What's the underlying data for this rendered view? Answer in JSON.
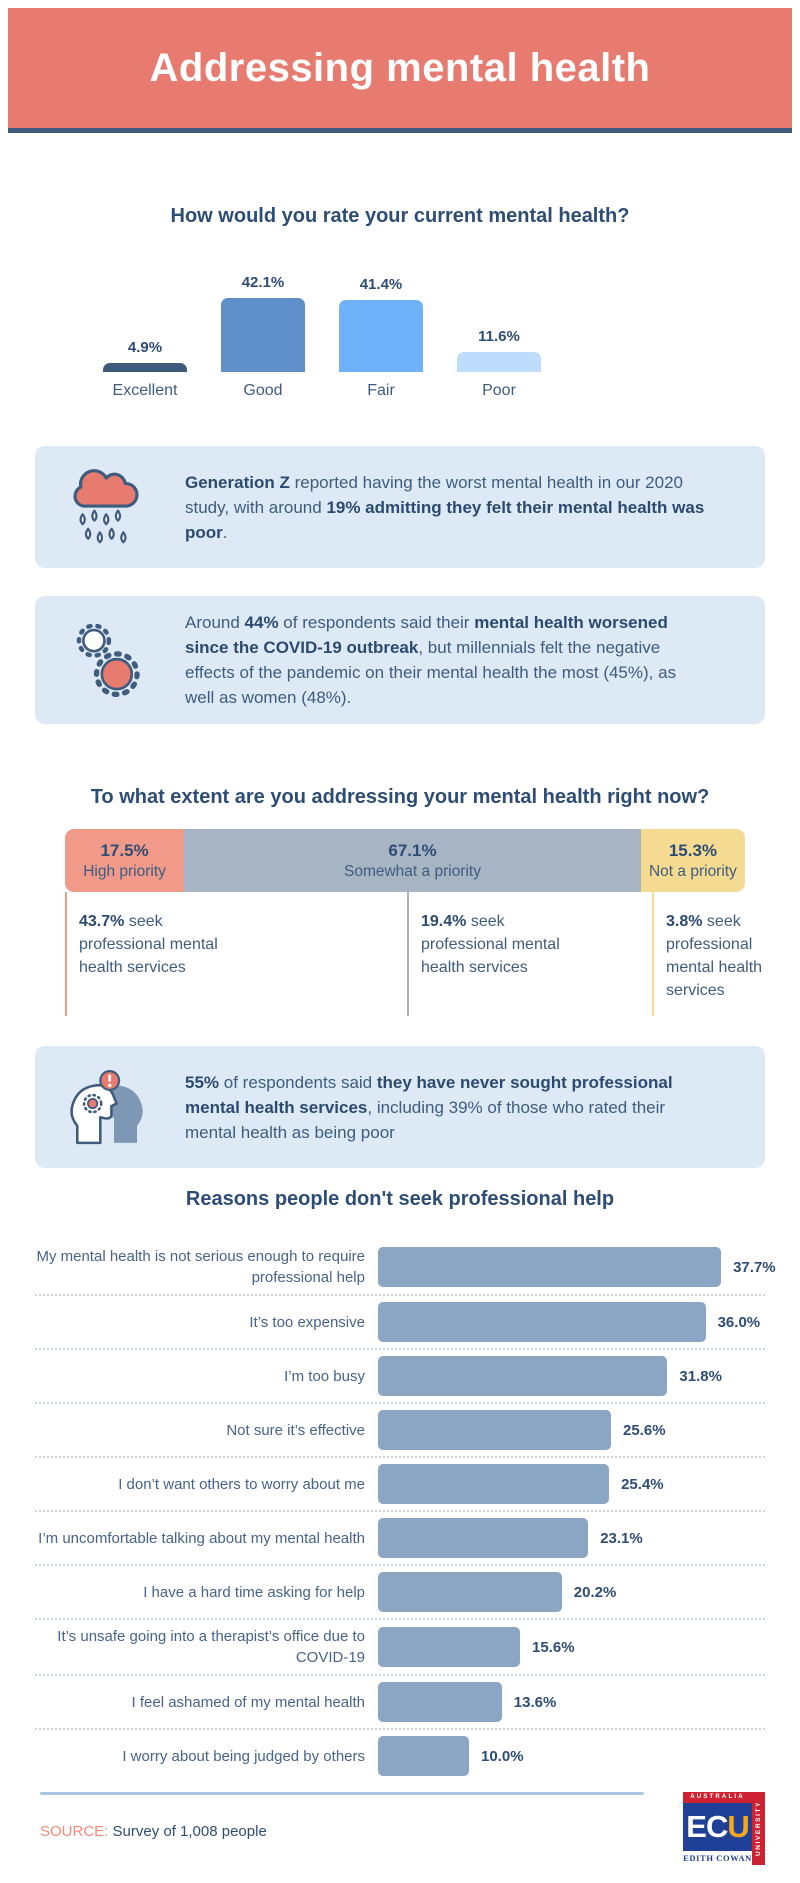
{
  "header": {
    "title": "Addressing mental health"
  },
  "chart_data": [
    {
      "id": "rating",
      "type": "bar",
      "title": "How would you rate your current mental health?",
      "categories": [
        "Excellent",
        "Good",
        "Fair",
        "Poor"
      ],
      "values": [
        4.9,
        42.1,
        41.4,
        11.6
      ],
      "value_labels": [
        "4.9%",
        "42.1%",
        "41.4%",
        "11.6%"
      ],
      "bar_colors": [
        "#3e5a7a",
        "#5e8fc9",
        "#70b2f9",
        "#bedcfb"
      ],
      "ylim": [
        0,
        45
      ],
      "grid": false,
      "legend": "none",
      "value_label_position": "above"
    },
    {
      "id": "priority",
      "type": "stacked-bar",
      "title": "To what extent are you addressing your mental health right now?",
      "segments": [
        {
          "value": 17.5,
          "value_label": "17.5%",
          "label": "High priority",
          "color": "#f19a8a",
          "seek_stat": {
            "pct": "43.7%",
            "text": " seek professional mental health services"
          }
        },
        {
          "value": 67.1,
          "value_label": "67.1%",
          "label": "Somewhat a priority",
          "color": "#a7b4c4",
          "seek_stat": {
            "pct": "19.4%",
            "text": " seek professional mental health services"
          }
        },
        {
          "value": 15.3,
          "value_label": "15.3%",
          "label": "Not a priority",
          "color": "#f5da92",
          "seek_stat": {
            "pct": "3.8%",
            "text": " seek professional mental health services"
          }
        }
      ]
    },
    {
      "id": "reasons",
      "type": "bar-horizontal",
      "title": "Reasons people don't seek professional help",
      "categories": [
        "My mental health is not serious enough to require professional help",
        "It’s too expensive",
        "I’m too busy",
        "Not sure it’s effective",
        "I don’t want others to worry about me",
        "I’m uncomfortable talking about my mental health",
        "I have a hard time asking for help",
        "It’s unsafe going into a therapist’s office due to COVID-19",
        "I feel ashamed of my mental health",
        "I worry about being judged by others"
      ],
      "values": [
        37.7,
        36.0,
        31.8,
        25.6,
        25.4,
        23.1,
        20.2,
        15.6,
        13.6,
        10.0
      ],
      "value_labels": [
        "37.7%",
        "36.0%",
        "31.8%",
        "25.6%",
        "25.4%",
        "23.1%",
        "20.2%",
        "15.6%",
        "13.6%",
        "10.0%"
      ],
      "bar_color": "#8ba5c4",
      "xlim": [
        0,
        40
      ],
      "grid": false,
      "separators": "dotted"
    }
  ],
  "callouts": [
    {
      "icon": "rain-cloud-icon",
      "rich_text": [
        {
          "text": "Generation Z",
          "bold": true
        },
        {
          "text": " reported having the worst mental health in our 2020 study, with around ",
          "bold": false
        },
        {
          "text": "19% admitting they felt their mental health was poor",
          "bold": true
        },
        {
          "text": ".",
          "bold": false
        }
      ]
    },
    {
      "icon": "virus-icon",
      "rich_text": [
        {
          "text": "Around ",
          "bold": false
        },
        {
          "text": "44%",
          "bold": true
        },
        {
          "text": " of respondents said their ",
          "bold": false
        },
        {
          "text": "mental health worsened since the COVID-19 outbreak",
          "bold": true
        },
        {
          "text": ", but millennials felt the negative effects of the pandemic on their mental health the most (45%), as well as women (48%).",
          "bold": false
        }
      ]
    },
    {
      "icon": "heads-alert-icon",
      "rich_text": [
        {
          "text": "55%",
          "bold": true
        },
        {
          "text": " of respondents said ",
          "bold": false
        },
        {
          "text": "they have never sought professional mental health services",
          "bold": true
        },
        {
          "text": ", including 39% of those who rated their mental health as being poor",
          "bold": false
        }
      ]
    }
  ],
  "footer": {
    "source_label": "SOURCE:",
    "source_text": " Survey of 1,008 people",
    "logo": {
      "top_banner": "AUSTRALIA",
      "letters_white": "EC",
      "letters_yellow": "U",
      "bottom_text": "EDITH COWAN",
      "side_text": "UNIVERSITY"
    }
  },
  "colors": {
    "header_bg": "#e87b6f",
    "header_border": "#3e5a7a",
    "heading_text": "#2e4d74",
    "body_text": "#3e5c7e",
    "callout_bg": "#ddeaf6",
    "reason_bar": "#8ba5c4",
    "footer_rule": "#a9c6e5",
    "source_label": "#f28b7d",
    "ecu_blue": "#1f4096",
    "ecu_red": "#cc2232",
    "ecu_yellow": "#f5a81c"
  }
}
